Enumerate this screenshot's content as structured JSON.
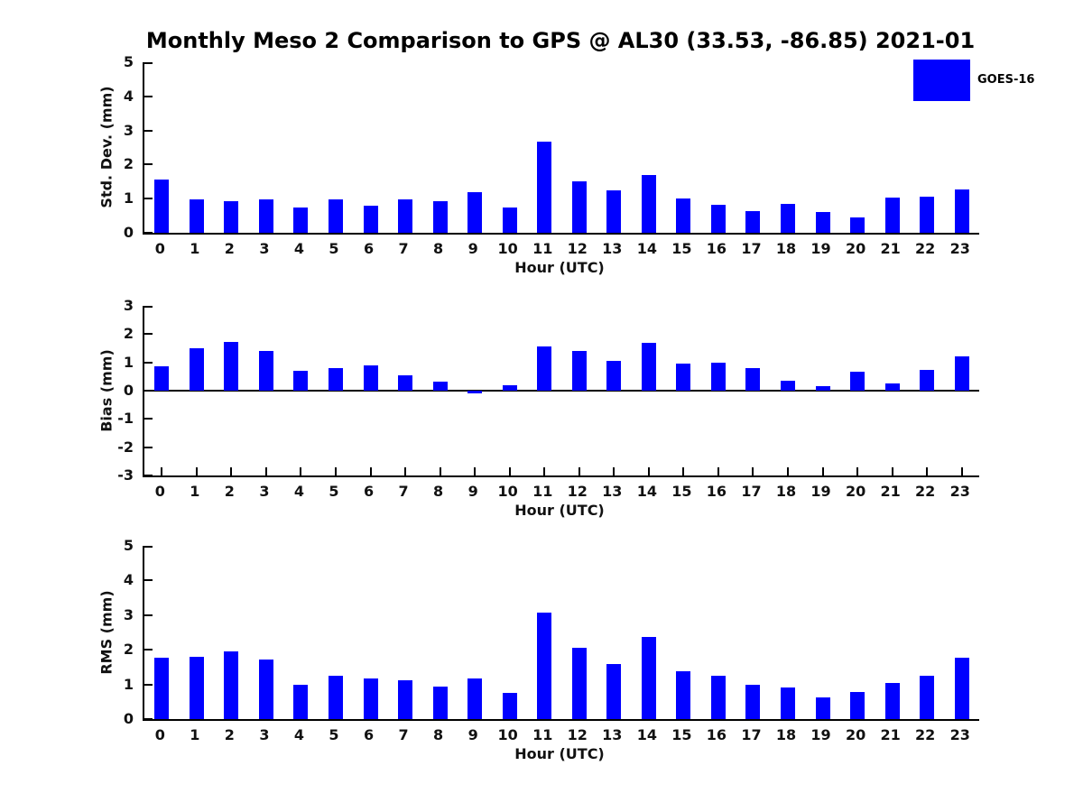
{
  "title": "Monthly Meso 2 Comparison to GPS @ AL30 (33.53, -86.85) 2021-01",
  "legend": {
    "label": "GOES-16",
    "color": "#0000FF",
    "position": "top-right"
  },
  "colors": {
    "bar": "#0000FF",
    "axis": "#000000",
    "text": "#111111",
    "background": "#FFFFFF"
  },
  "chart_data": [
    {
      "type": "bar",
      "ylabel": "Std. Dev. (mm)",
      "xlabel": "Hour (UTC)",
      "ylim": [
        0,
        5
      ],
      "yticks": [
        0,
        1,
        2,
        3,
        4,
        5
      ],
      "grid": false,
      "series_name": "GOES-16",
      "categories": [
        "0",
        "1",
        "2",
        "3",
        "4",
        "5",
        "6",
        "7",
        "8",
        "9",
        "10",
        "11",
        "12",
        "13",
        "14",
        "15",
        "16",
        "17",
        "18",
        "19",
        "20",
        "21",
        "22",
        "23"
      ],
      "values": [
        1.55,
        0.97,
        0.92,
        0.99,
        0.75,
        0.99,
        0.8,
        0.98,
        0.93,
        1.18,
        0.75,
        2.67,
        1.5,
        1.25,
        1.7,
        1.0,
        0.82,
        0.64,
        0.85,
        0.6,
        0.45,
        1.03,
        1.05,
        1.28
      ]
    },
    {
      "type": "bar",
      "ylabel": "Bias (mm)",
      "xlabel": "Hour (UTC)",
      "ylim": [
        -3,
        3
      ],
      "yticks": [
        3,
        2,
        1,
        0,
        -1,
        -2,
        -3
      ],
      "grid": false,
      "series_name": "GOES-16",
      "categories": [
        "0",
        "1",
        "2",
        "3",
        "4",
        "5",
        "6",
        "7",
        "8",
        "9",
        "10",
        "11",
        "12",
        "13",
        "14",
        "15",
        "16",
        "17",
        "18",
        "19",
        "20",
        "21",
        "22",
        "23"
      ],
      "values": [
        0.85,
        1.5,
        1.72,
        1.42,
        0.7,
        0.8,
        0.9,
        0.55,
        0.33,
        -0.1,
        0.18,
        1.55,
        1.4,
        1.05,
        1.7,
        0.95,
        1.0,
        0.8,
        0.35,
        0.15,
        0.68,
        0.27,
        0.75,
        1.22
      ]
    },
    {
      "type": "bar",
      "ylabel": "RMS (mm)",
      "xlabel": "Hour (UTC)",
      "ylim": [
        0,
        5
      ],
      "yticks": [
        0,
        1,
        2,
        3,
        4,
        5
      ],
      "grid": false,
      "series_name": "GOES-16",
      "categories": [
        "0",
        "1",
        "2",
        "3",
        "4",
        "5",
        "6",
        "7",
        "8",
        "9",
        "10",
        "11",
        "12",
        "13",
        "14",
        "15",
        "16",
        "17",
        "18",
        "19",
        "20",
        "21",
        "22",
        "23"
      ],
      "values": [
        1.77,
        1.8,
        1.95,
        1.72,
        1.0,
        1.25,
        1.16,
        1.11,
        0.95,
        1.16,
        0.75,
        3.06,
        2.05,
        1.6,
        2.37,
        1.37,
        1.26,
        1.0,
        0.9,
        0.62,
        0.78,
        1.05,
        1.26,
        1.78
      ]
    }
  ]
}
